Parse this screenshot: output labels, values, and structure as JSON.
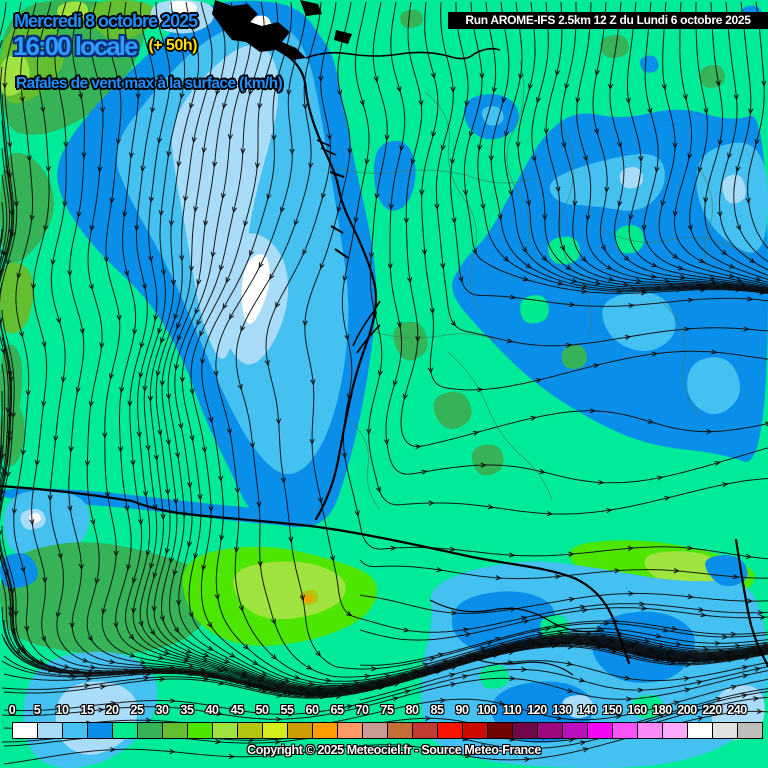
{
  "header": {
    "date": "Mercredi 8 octobre 2025",
    "time": "16:00 locale",
    "forecast_offset": "(+ 50h)",
    "variable": "Rafales de vent max à la surface (km/h)"
  },
  "run_info": {
    "label": "Run AROME-IFS 2.5km 12 Z du Lundi 6 octobre 2025"
  },
  "copyright": "Copyright © 2025 Meteociel.fr - Source Meteo-France",
  "colors": {
    "title_blue": "#1E8FFF",
    "time_blue": "#2E9BFF",
    "offset_yellow": "#FFE000",
    "run_box_bg": "#000000",
    "run_box_fg": "#FFFFFF",
    "map_base": "#00EB99",
    "streamline": "#0A0A0A",
    "coastline": "#000000"
  },
  "scale": {
    "unit": "km/h",
    "labels": [
      "0",
      "5",
      "10",
      "15",
      "20",
      "25",
      "30",
      "35",
      "40",
      "45",
      "50",
      "55",
      "60",
      "65",
      "70",
      "75",
      "80",
      "85",
      "90",
      "100",
      "110",
      "120",
      "130",
      "140",
      "150",
      "160",
      "180",
      "200",
      "220",
      "240"
    ],
    "cell_colors": [
      "#FFFFFF",
      "#A8DCF8",
      "#44C1F1",
      "#098FE9",
      "#00EB8D",
      "#36B257",
      "#63BF30",
      "#4DE600",
      "#9FE33F",
      "#B5C411",
      "#D4EC1C",
      "#CC9C00",
      "#FF9D00",
      "#FC9A66",
      "#C89A92",
      "#C56D36",
      "#C23B32",
      "#FA1400",
      "#CC0A00",
      "#730302",
      "#73054B",
      "#9C0880",
      "#BC10BC",
      "#F506F5",
      "#F952FA",
      "#F98BF9",
      "#FAAAFA",
      "#FFFFFF",
      "#DFE2DF",
      "#BBBEBB"
    ]
  }
}
